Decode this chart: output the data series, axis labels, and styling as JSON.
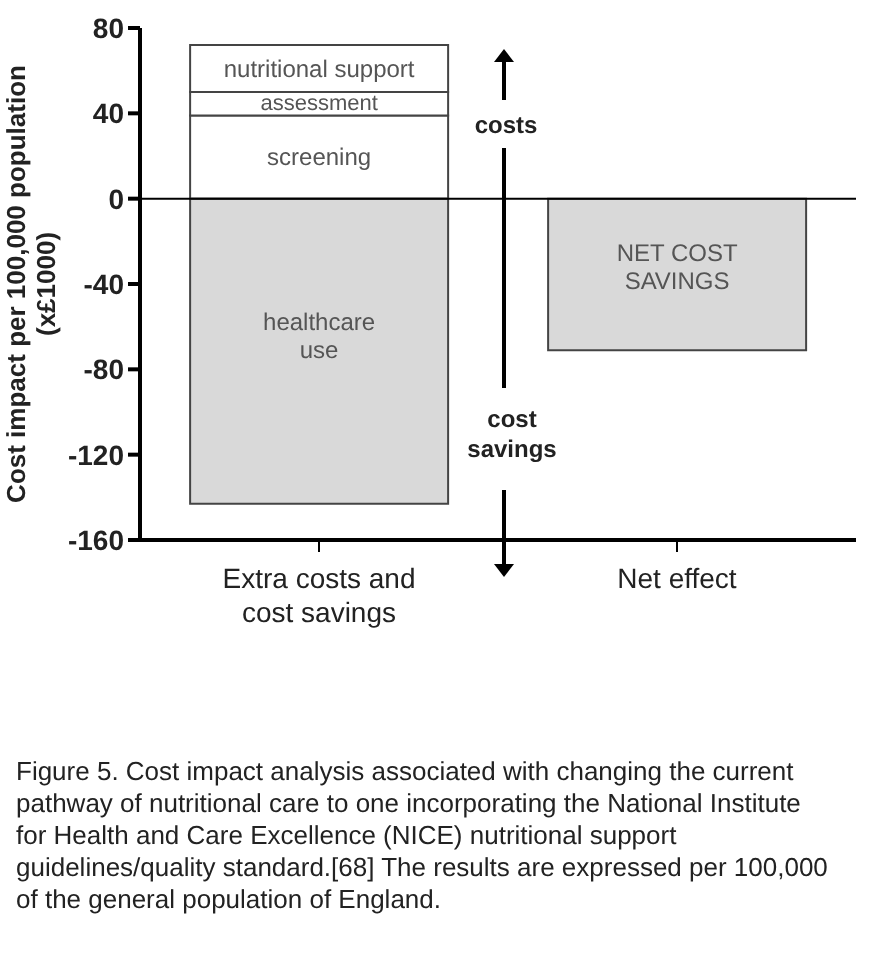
{
  "chart_data": {
    "type": "bar",
    "stacked": true,
    "categories": [
      "Extra costs and cost savings",
      "Net effect"
    ],
    "series": [
      {
        "name": "screening",
        "color": "#ffffff",
        "values": [
          39,
          null
        ]
      },
      {
        "name": "assessment",
        "color": "#ffffff",
        "values": [
          11,
          null
        ]
      },
      {
        "name": "nutritional support",
        "color": "#ffffff",
        "values": [
          22,
          null
        ]
      },
      {
        "name": "healthcare use",
        "color": "#d9d9d9",
        "values": [
          -143,
          null
        ]
      },
      {
        "name": "NET COST SAVINGS",
        "color": "#d9d9d9",
        "values": [
          null,
          -71
        ]
      }
    ],
    "ylabel": "Cost impact per 100,000 population (x£1000)",
    "ylim": [
      -160,
      80
    ],
    "yticks": [
      -160,
      -120,
      -80,
      -40,
      0,
      40,
      80
    ],
    "ref_lines": [
      {
        "axis": "y",
        "value": 0
      }
    ],
    "grid": false,
    "legend": false,
    "annotations": [
      "costs",
      "cost savings",
      "Figure 5. Cost impact analysis associated with changing the current pathway of nutritional care to one incorporating the National Institute for Health and Care Excellence (NICE) nutritional support guidelines/quality standard.[68] The results are expressed per 100,000 of the general population of England."
    ]
  }
}
